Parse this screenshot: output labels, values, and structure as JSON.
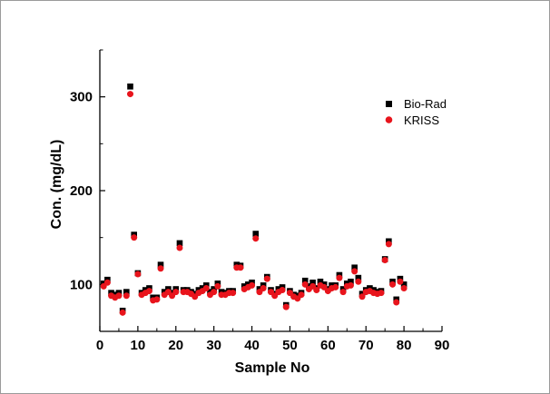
{
  "chart_data": {
    "type": "scatter",
    "xlabel": "Sample No",
    "ylabel": "Con. (mg/dL)",
    "xlim": [
      0,
      90
    ],
    "ylim": [
      50,
      350
    ],
    "x_ticks": [
      0,
      10,
      20,
      30,
      40,
      50,
      60,
      70,
      80,
      90
    ],
    "y_ticks": [
      100,
      200,
      300
    ],
    "grid": false,
    "legend_position": "top-right",
    "series": [
      {
        "name": "Bio-Rad",
        "marker": "square",
        "color": "#000000",
        "x": [
          1,
          2,
          3,
          4,
          5,
          6,
          7,
          8,
          9,
          10,
          11,
          12,
          13,
          14,
          15,
          16,
          17,
          18,
          19,
          20,
          21,
          22,
          23,
          24,
          25,
          26,
          27,
          28,
          29,
          30,
          31,
          32,
          33,
          34,
          35,
          36,
          37,
          38,
          39,
          40,
          41,
          42,
          43,
          44,
          45,
          46,
          47,
          48,
          49,
          50,
          51,
          52,
          53,
          54,
          55,
          56,
          57,
          58,
          59,
          60,
          61,
          62,
          63,
          64,
          65,
          66,
          67,
          68,
          69,
          70,
          71,
          72,
          73,
          74,
          75,
          76,
          77,
          78,
          79,
          80
        ],
        "values": [
          101,
          105,
          91,
          89,
          91,
          72,
          92,
          311,
          153,
          112,
          91,
          94,
          96,
          86,
          86,
          121,
          92,
          95,
          91,
          95,
          144,
          94,
          94,
          92,
          90,
          94,
          96,
          99,
          92,
          95,
          101,
          92,
          91,
          93,
          93,
          121,
          120,
          98,
          100,
          102,
          154,
          95,
          99,
          108,
          94,
          90,
          95,
          97,
          78,
          93,
          89,
          88,
          91,
          104,
          98,
          102,
          96,
          103,
          100,
          95,
          99,
          99,
          110,
          95,
          101,
          103,
          118,
          107,
          90,
          94,
          96,
          94,
          92,
          93,
          127,
          146,
          103,
          84,
          106,
          100
        ]
      },
      {
        "name": "KRISS",
        "marker": "circle",
        "color": "#e8141c",
        "x": [
          1,
          2,
          3,
          4,
          5,
          6,
          7,
          8,
          9,
          10,
          11,
          12,
          13,
          14,
          15,
          16,
          17,
          18,
          19,
          20,
          21,
          22,
          23,
          24,
          25,
          26,
          27,
          28,
          29,
          30,
          31,
          32,
          33,
          34,
          35,
          36,
          37,
          38,
          39,
          40,
          41,
          42,
          43,
          44,
          45,
          46,
          47,
          48,
          49,
          50,
          51,
          52,
          53,
          54,
          55,
          56,
          57,
          58,
          59,
          60,
          61,
          62,
          63,
          64,
          65,
          66,
          67,
          68,
          69,
          70,
          71,
          72,
          73,
          74,
          75,
          76,
          77,
          78,
          79,
          80
        ],
        "values": [
          98,
          102,
          88,
          86,
          88,
          70,
          88,
          303,
          150,
          111,
          89,
          91,
          93,
          83,
          84,
          117,
          89,
          92,
          88,
          92,
          139,
          92,
          92,
          90,
          87,
          91,
          93,
          96,
          89,
          92,
          98,
          89,
          89,
          91,
          91,
          118,
          118,
          95,
          97,
          99,
          149,
          92,
          96,
          106,
          92,
          88,
          92,
          94,
          76,
          91,
          87,
          85,
          89,
          100,
          95,
          98,
          94,
          99,
          97,
          93,
          96,
          97,
          107,
          92,
          98,
          99,
          114,
          103,
          87,
          92,
          93,
          91,
          90,
          91,
          126,
          143,
          100,
          81,
          103,
          96
        ]
      }
    ]
  }
}
